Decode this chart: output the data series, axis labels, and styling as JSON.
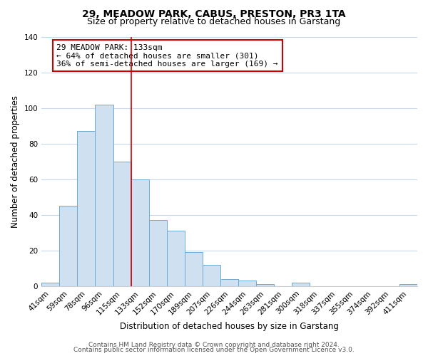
{
  "title": "29, MEADOW PARK, CABUS, PRESTON, PR3 1TA",
  "subtitle": "Size of property relative to detached houses in Garstang",
  "xlabel": "Distribution of detached houses by size in Garstang",
  "ylabel": "Number of detached properties",
  "bar_labels": [
    "41sqm",
    "59sqm",
    "78sqm",
    "96sqm",
    "115sqm",
    "133sqm",
    "152sqm",
    "170sqm",
    "189sqm",
    "207sqm",
    "226sqm",
    "244sqm",
    "263sqm",
    "281sqm",
    "300sqm",
    "318sqm",
    "337sqm",
    "355sqm",
    "374sqm",
    "392sqm",
    "411sqm"
  ],
  "bar_values": [
    2,
    45,
    87,
    102,
    70,
    60,
    37,
    31,
    19,
    12,
    4,
    3,
    1,
    0,
    2,
    0,
    0,
    0,
    0,
    0,
    1
  ],
  "bar_color": "#cfe0f0",
  "bar_edgecolor": "#6aaad4",
  "vline_color": "#cc0000",
  "annotation_text": "29 MEADOW PARK: 133sqm\n← 64% of detached houses are smaller (301)\n36% of semi-detached houses are larger (169) →",
  "annotation_box_edgecolor": "#cc0000",
  "annotation_box_facecolor": "#ffffff",
  "ylim": [
    0,
    140
  ],
  "yticks": [
    0,
    20,
    40,
    60,
    80,
    100,
    120,
    140
  ],
  "footer1": "Contains HM Land Registry data © Crown copyright and database right 2024.",
  "footer2": "Contains public sector information licensed under the Open Government Licence v3.0.",
  "background_color": "#ffffff",
  "grid_color": "#c8d8e8",
  "title_fontsize": 10,
  "subtitle_fontsize": 9,
  "axis_label_fontsize": 8.5,
  "tick_fontsize": 7.5,
  "annotation_fontsize": 8,
  "footer_fontsize": 6.5
}
